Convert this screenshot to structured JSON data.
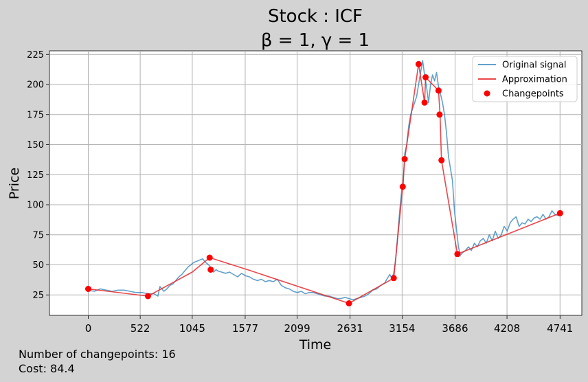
{
  "chart_data": {
    "type": "line",
    "title": "Stock : ICF",
    "subtitle": "β = 1, γ = 1",
    "xlabel": "Time",
    "ylabel": "Price",
    "xlim": [
      -390,
      4960
    ],
    "ylim": [
      8,
      228
    ],
    "xticks": [
      0,
      522,
      1045,
      1577,
      2099,
      2631,
      3154,
      3686,
      4208,
      4741
    ],
    "yticks": [
      25,
      50,
      75,
      100,
      125,
      150,
      175,
      200,
      225
    ],
    "grid": true,
    "legend_position": "top-right",
    "legend": [
      "Original signal",
      "Approximation",
      "Changepoints"
    ],
    "colors": {
      "signal": "#1f77b4",
      "approximation": "#e8272b",
      "changepoints": "#ff0000",
      "background": "#d3d3d3"
    },
    "series": [
      {
        "name": "Original signal",
        "x": [
          0,
          60,
          120,
          180,
          240,
          300,
          360,
          420,
          480,
          540,
          600,
          660,
          700,
          720,
          740,
          760,
          790,
          820,
          850,
          880,
          910,
          940,
          970,
          1000,
          1030,
          1060,
          1090,
          1120,
          1150,
          1180,
          1210,
          1240,
          1260,
          1285,
          1300,
          1340,
          1380,
          1420,
          1460,
          1500,
          1540,
          1580,
          1620,
          1660,
          1700,
          1740,
          1780,
          1820,
          1860,
          1900,
          1940,
          1980,
          2020,
          2060,
          2100,
          2140,
          2180,
          2220,
          2260,
          2300,
          2340,
          2380,
          2420,
          2460,
          2500,
          2540,
          2580,
          2620,
          2660,
          2700,
          2740,
          2780,
          2820,
          2860,
          2900,
          2940,
          2980,
          3000,
          3030,
          3050,
          3070,
          3090,
          3110,
          3130,
          3150,
          3165,
          3180,
          3200,
          3220,
          3240,
          3260,
          3280,
          3300,
          3320,
          3340,
          3360,
          3380,
          3400,
          3420,
          3440,
          3460,
          3480,
          3500,
          3520,
          3540,
          3560,
          3580,
          3600,
          3620,
          3640,
          3660,
          3680,
          3700,
          3720,
          3740,
          3760,
          3790,
          3820,
          3850,
          3880,
          3910,
          3940,
          3970,
          4000,
          4030,
          4060,
          4090,
          4120,
          4150,
          4180,
          4210,
          4240,
          4270,
          4300,
          4330,
          4360,
          4390,
          4420,
          4450,
          4480,
          4510,
          4540,
          4570,
          4600,
          4630,
          4660,
          4690,
          4720,
          4741
        ],
        "y": [
          29,
          28,
          30,
          29,
          28,
          29,
          29,
          28,
          27,
          27,
          26,
          26,
          24,
          32,
          30,
          28,
          30,
          33,
          34,
          37,
          40,
          42,
          45,
          48,
          50,
          52,
          53,
          54,
          55,
          52,
          50,
          47,
          44,
          46,
          45,
          44,
          43,
          44,
          42,
          40,
          43,
          41,
          40,
          38,
          37,
          38,
          36,
          37,
          36,
          38,
          33,
          31,
          30,
          28,
          27,
          28,
          26,
          27,
          27,
          26,
          25,
          24,
          24,
          23,
          22,
          22,
          23,
          22,
          21,
          22,
          23,
          24,
          26,
          29,
          30,
          33,
          35,
          38,
          42,
          39,
          43,
          55,
          75,
          95,
          112,
          118,
          142,
          150,
          165,
          175,
          180,
          185,
          190,
          200,
          210,
          220,
          208,
          198,
          185,
          200,
          208,
          203,
          210,
          198,
          192,
          185,
          175,
          160,
          140,
          130,
          120,
          95,
          80,
          65,
          58,
          60,
          62,
          65,
          62,
          68,
          65,
          70,
          72,
          68,
          75,
          70,
          78,
          72,
          75,
          82,
          78,
          85,
          88,
          90,
          82,
          85,
          84,
          88,
          86,
          89,
          90,
          88,
          92,
          88,
          90,
          95,
          92,
          91,
          94
        ]
      },
      {
        "name": "Approximation",
        "x": [
          0,
          600,
          1045,
          1220,
          1600,
          2620,
          3070,
          3160,
          3180,
          3320,
          3380,
          3390,
          3520,
          3535,
          3550,
          3710,
          4741
        ],
        "y": [
          30,
          24,
          44,
          56,
          46,
          18,
          39,
          115,
          138,
          217,
          185,
          206,
          195,
          175,
          137,
          59,
          93
        ]
      },
      {
        "name": "Changepoints",
        "x": [
          0,
          600,
          1220,
          1230,
          2620,
          3070,
          3160,
          3180,
          3320,
          3380,
          3390,
          3520,
          3530,
          3550,
          3710,
          4741
        ],
        "y": [
          30,
          24,
          56,
          46,
          18,
          39,
          115,
          138,
          217,
          185,
          206,
          195,
          175,
          137,
          59,
          93
        ]
      }
    ]
  },
  "footer": {
    "changepoints_label": "Number of changepoints: 16",
    "cost_label": "Cost: 84.4"
  }
}
